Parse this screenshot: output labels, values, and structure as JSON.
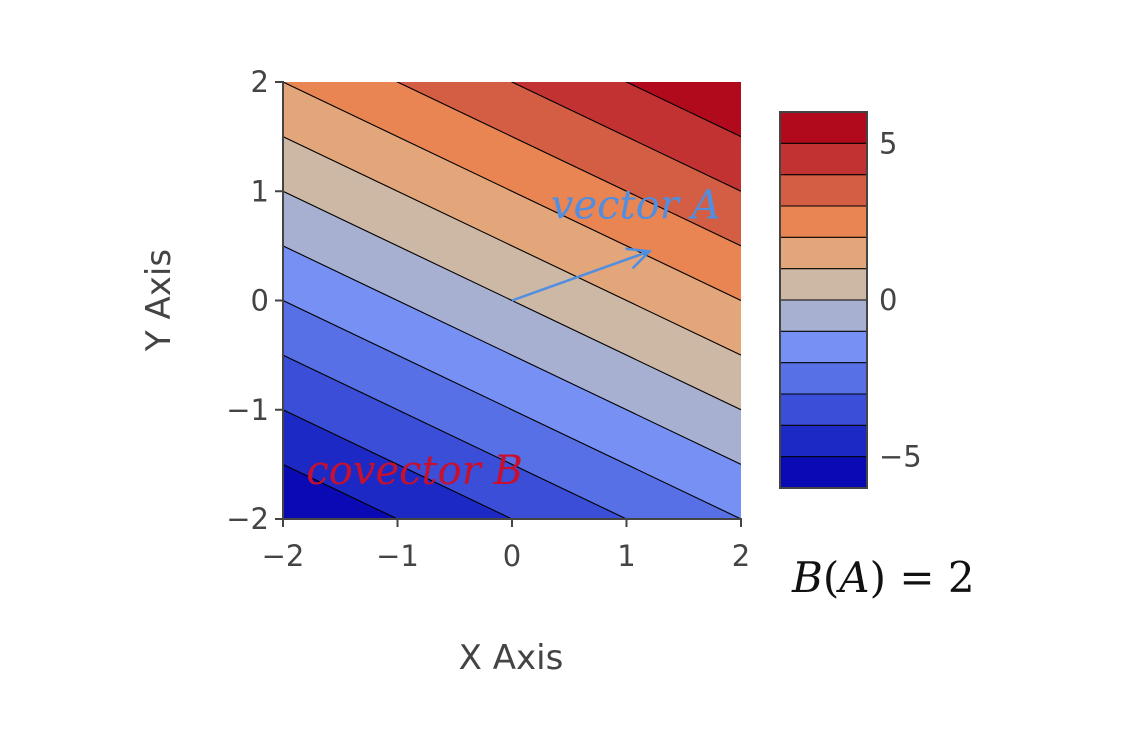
{
  "colors": {
    "bands": [
      "#0a0ab5",
      "#1d29c4",
      "#3a4ed7",
      "#5770e6",
      "#7690f4",
      "#a8b0d2",
      "#cdb7a5",
      "#e2a67a",
      "#e88552",
      "#d35e43",
      "#c23232",
      "#b10a1c"
    ],
    "contour_line": "#000000",
    "axis": "#444444",
    "vector_annotation": "#4f8ee0",
    "covector_annotation": "#c8102e",
    "formula": "#111111"
  },
  "chart_data": {
    "type": "contour",
    "function": "z = x + 2y",
    "xlabel": "X Axis",
    "ylabel": "Y Axis",
    "xlim": [
      -2,
      2
    ],
    "ylim": [
      -2,
      2
    ],
    "x_ticks": [
      -2,
      -1,
      0,
      1,
      2
    ],
    "y_ticks": [
      -2,
      -1,
      0,
      1,
      2
    ],
    "x_tick_labels": [
      "−2",
      "−1",
      "0",
      "1",
      "2"
    ],
    "y_tick_labels": [
      "−2",
      "−1",
      "0",
      "1",
      "2"
    ],
    "contour_levels": [
      -5,
      -4,
      -3,
      -2,
      -1,
      0,
      1,
      2,
      3,
      4,
      5
    ],
    "z_range": [
      -6,
      6
    ],
    "colorbar": {
      "ticks": [
        5,
        0,
        -5
      ],
      "tick_labels": [
        "5",
        "0",
        "−5"
      ]
    },
    "grid": false,
    "annotations": {
      "vector": {
        "text": "vector A",
        "start": [
          0,
          0
        ],
        "end": [
          1.2,
          0.45
        ],
        "text_position": [
          1.08,
          0.88
        ]
      },
      "covector": {
        "text": "covector B",
        "text_position": [
          -0.85,
          -1.55
        ]
      }
    },
    "formula": {
      "B": "B",
      "open": "(",
      "A": "A",
      "close": ")",
      "rest": " = 2"
    }
  }
}
